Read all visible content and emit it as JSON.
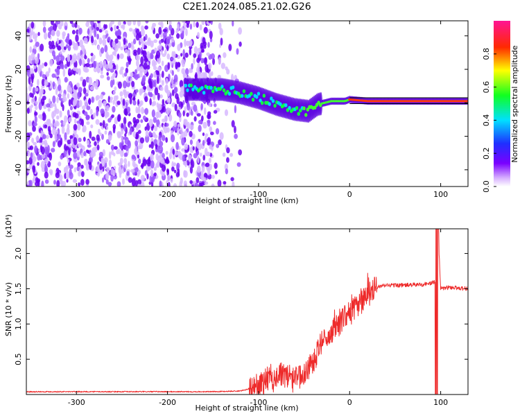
{
  "title": "C2E1.2024.085.21.02.G26",
  "chart_data": [
    {
      "type": "heatmap",
      "xlabel": "Height of straight line (km)",
      "ylabel": "Frequency (Hz)",
      "xlim": [
        -355,
        130
      ],
      "ylim": [
        -50,
        49
      ],
      "xticks": [
        -300,
        -200,
        -100,
        0,
        100
      ],
      "yticks": [
        -40,
        -20,
        0,
        20,
        40
      ],
      "colorbar": {
        "label": "Normalized spectral amplitude",
        "range": [
          0.0,
          1.0
        ],
        "ticks": [
          0.0,
          0.2,
          0.4,
          0.6,
          0.8
        ],
        "tick_labels": [
          "0.0",
          "0.2",
          "0.4",
          "0.6",
          "0.8"
        ],
        "colormap": "white-purple-blue-cyan-green-yellow-red-magenta"
      },
      "signal_track": {
        "description_points": [
          {
            "x": -180,
            "freq": 8
          },
          {
            "x": -140,
            "freq": 8
          },
          {
            "x": -120,
            "freq": 6
          },
          {
            "x": -100,
            "freq": 3
          },
          {
            "x": -80,
            "freq": -1
          },
          {
            "x": -60,
            "freq": -4
          },
          {
            "x": -45,
            "freq": -5
          },
          {
            "x": -35,
            "freq": -1
          },
          {
            "x": -20,
            "freq": 1
          },
          {
            "x": -5,
            "freq": 1
          },
          {
            "x": 0,
            "freq": 2
          },
          {
            "x": 20,
            "freq": 1
          },
          {
            "x": 90,
            "freq": 1
          },
          {
            "x": 130,
            "freq": 1
          }
        ],
        "noise_region_x": [
          -355,
          -140
        ]
      }
    },
    {
      "type": "line",
      "xlabel": "Height of straight line (km)",
      "ylabel": "SNR (10 * v/v)",
      "y_multiplier": "(x10⁴)",
      "xlim": [
        -355,
        130
      ],
      "ylim": [
        0,
        2.35
      ],
      "xticks": [
        -300,
        -200,
        -100,
        0,
        100
      ],
      "yticks": [
        0.5,
        1.0,
        1.5,
        2.0
      ],
      "ytick_labels": [
        "0.5",
        "1.0",
        "1.5",
        "2.0"
      ],
      "series": [
        {
          "color": "#ee2a2a",
          "x": [
            -355,
            -300,
            -250,
            -200,
            -150,
            -120,
            -100,
            -90,
            -80,
            -70,
            -60,
            -50,
            -40,
            -30,
            -20,
            -10,
            0,
            10,
            20,
            30,
            40,
            60,
            80,
            90,
            95,
            97,
            100,
            110,
            130
          ],
          "values": [
            0.04,
            0.04,
            0.04,
            0.04,
            0.04,
            0.05,
            0.12,
            0.22,
            0.25,
            0.28,
            0.2,
            0.3,
            0.45,
            0.75,
            0.9,
            1.05,
            1.15,
            1.3,
            1.45,
            1.52,
            1.55,
            1.55,
            1.56,
            1.58,
            1.6,
            2.35,
            1.5,
            1.52,
            1.5
          ]
        }
      ]
    }
  ]
}
